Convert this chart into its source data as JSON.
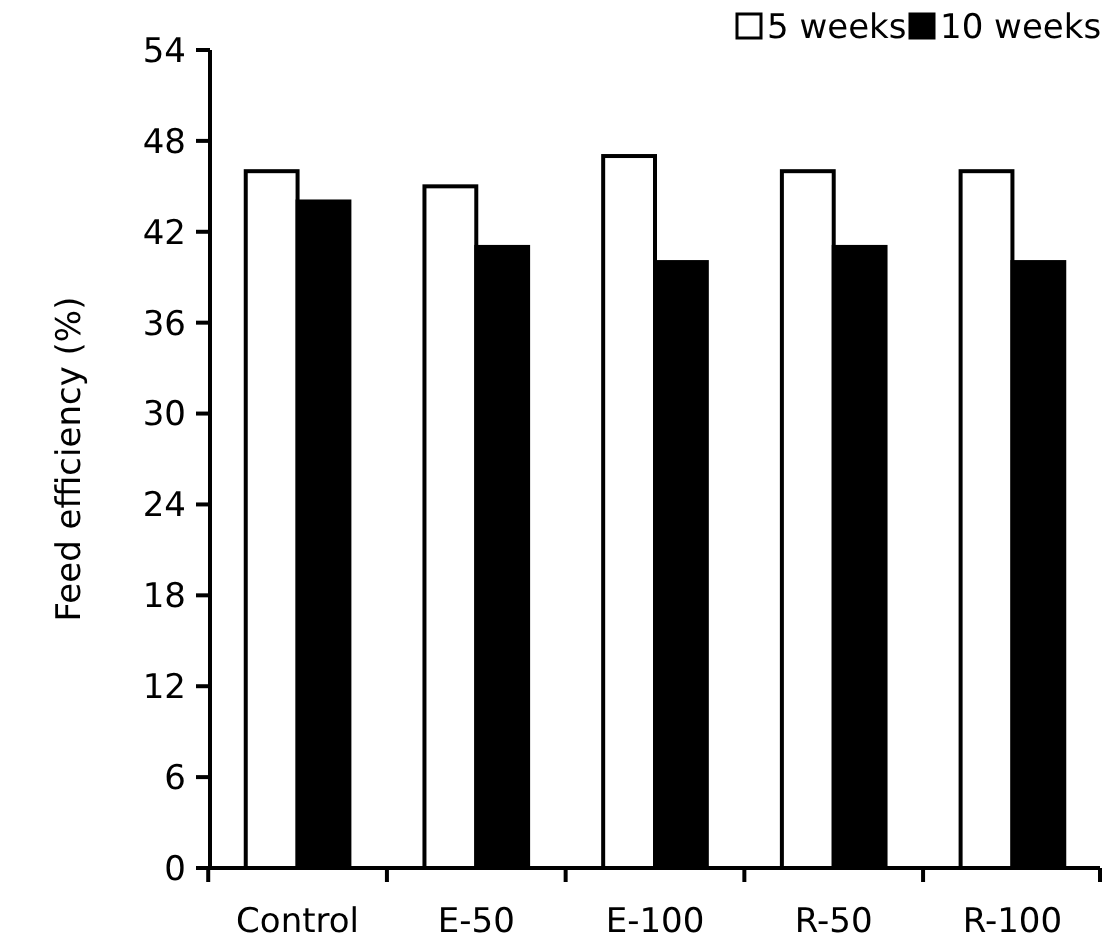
{
  "chart_data": {
    "type": "bar",
    "ylabel": "Feed efficiency (%)",
    "categories": [
      "Control",
      "E-50",
      "E-100",
      "R-50",
      "R-100"
    ],
    "series": [
      {
        "name": "5 weeks",
        "color": "#ffffff",
        "values": [
          46,
          45,
          47,
          46,
          46
        ]
      },
      {
        "name": "10 weeks",
        "color": "#000000",
        "values": [
          44,
          41,
          40,
          41,
          40
        ]
      }
    ],
    "ylim": [
      0,
      54
    ],
    "yticks": [
      0,
      6,
      12,
      18,
      24,
      30,
      36,
      42,
      48,
      54
    ],
    "grid": false,
    "legend": "top right"
  }
}
